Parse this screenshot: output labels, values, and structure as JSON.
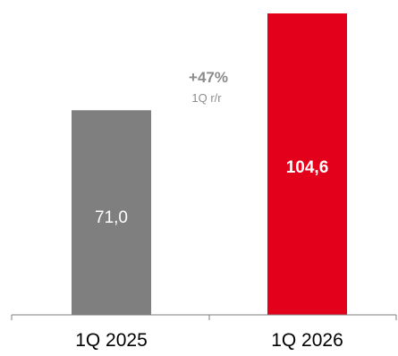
{
  "chart_data": {
    "type": "bar",
    "categories": [
      "1Q 2025",
      "1Q 2026"
    ],
    "values": [
      71.0,
      104.6
    ],
    "value_labels": [
      "71,0",
      "104,6"
    ],
    "colors": [
      "#7f7f7f",
      "#e2001a"
    ],
    "label_colors": [
      "#ffffff",
      "#ffffff"
    ],
    "label_bold": [
      false,
      true
    ],
    "title": "",
    "xlabel": "",
    "ylabel": "",
    "ylim": [
      0,
      104.6
    ],
    "grid": false,
    "annotation": {
      "value": "+47%",
      "sub": "1Q r/r",
      "color": "#8c8c8c"
    },
    "axis_color": "#7f7f7f"
  }
}
